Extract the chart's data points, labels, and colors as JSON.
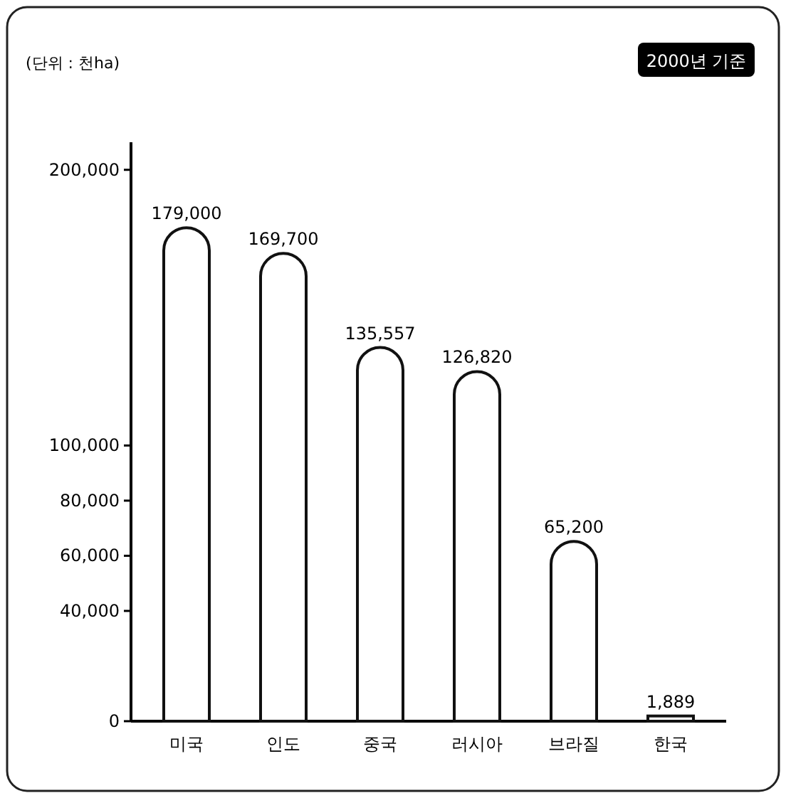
{
  "chart_data": {
    "type": "bar",
    "ylabel": "(단위 : 천ha)",
    "annotations": [
      "2000년 기준"
    ],
    "categories": [
      "미국",
      "인도",
      "중국",
      "러시아",
      "브라질",
      "한국"
    ],
    "values": [
      179000,
      169700,
      135557,
      126820,
      65200,
      1889
    ],
    "color": "#ffffff",
    "ylim": [
      0,
      210000
    ],
    "yticks": [
      0,
      {
        "value": 40000,
        "label": "40,000"
      },
      {
        "value": 60000,
        "label": "60,000"
      },
      {
        "value": 80000,
        "label": "80,000"
      },
      {
        "value": 100000,
        "label": "100,000"
      },
      {
        "value": 200000,
        "label": "200,000"
      }
    ],
    "value_labels": [
      "179,000",
      "169,700",
      "135,557",
      "126,820",
      "65,200",
      "1,889"
    ]
  }
}
